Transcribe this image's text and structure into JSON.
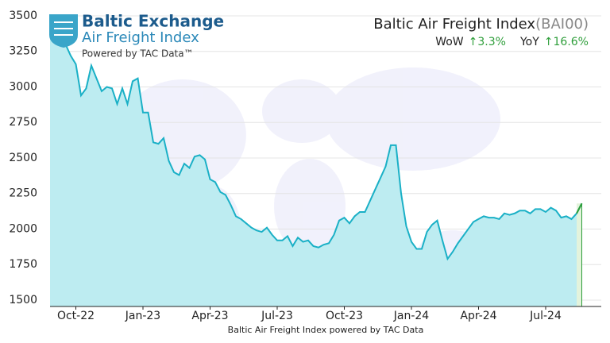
{
  "chart_data": {
    "type": "line",
    "title": "Baltic Air Freight Index",
    "code": "(BAI00)",
    "logo": {
      "name": "Baltic Exchange",
      "product": "Air Freight Index",
      "powered": "Powered by TAC Data™"
    },
    "stats": [
      {
        "label": "WoW",
        "value": "↑3.3%"
      },
      {
        "label": "YoY",
        "value": "↑16.6%"
      }
    ],
    "xlabel": "Baltic Air Freight Index powered by TAC Data",
    "categories": [
      null,
      null,
      null,
      null,
      null,
      "Oct-22",
      null,
      null,
      null,
      null,
      null,
      null,
      null,
      null,
      null,
      null,
      null,
      null,
      "Jan-23",
      null,
      null,
      null,
      null,
      null,
      null,
      null,
      null,
      null,
      null,
      null,
      null,
      "Apr-23",
      null,
      null,
      null,
      null,
      null,
      null,
      null,
      null,
      null,
      null,
      null,
      null,
      "Jul-23",
      null,
      null,
      null,
      null,
      null,
      null,
      null,
      null,
      null,
      null,
      null,
      null,
      "Oct-23",
      null,
      null,
      null,
      null,
      null,
      null,
      null,
      null,
      null,
      null,
      null,
      null,
      "Jan-24",
      null,
      null,
      null,
      null,
      null,
      null,
      null,
      null,
      null,
      null,
      null,
      null,
      "Apr-24",
      null,
      null,
      null,
      null,
      null,
      null,
      null,
      null,
      null,
      null,
      null,
      null,
      "Jul-24",
      null,
      null,
      null,
      null,
      null,
      null,
      null
    ],
    "series": [
      {
        "name": "BAI00",
        "color": "#1ab0c6",
        "fill": "#bdecf1",
        "values": [
          3480,
          3440,
          3380,
          3300,
          3220,
          3160,
          2940,
          2990,
          3150,
          3060,
          2970,
          3000,
          2990,
          2880,
          2990,
          2880,
          3040,
          3060,
          2820,
          2820,
          2610,
          2600,
          2640,
          2480,
          2400,
          2380,
          2460,
          2430,
          2510,
          2520,
          2490,
          2350,
          2330,
          2260,
          2240,
          2170,
          2090,
          2070,
          2040,
          2010,
          1990,
          1980,
          2010,
          1960,
          1920,
          1920,
          1950,
          1880,
          1940,
          1910,
          1920,
          1880,
          1870,
          1890,
          1900,
          1960,
          2060,
          2080,
          2040,
          2090,
          2120,
          2120,
          2200,
          2280,
          2360,
          2440,
          2590,
          2590,
          2250,
          2020,
          1910,
          1860,
          1860,
          1980,
          2030,
          2060,
          1920,
          1790,
          1840,
          1900,
          1950,
          2000,
          2050,
          2070,
          2090,
          2080,
          2080,
          2070,
          2110,
          2100,
          2110,
          2130,
          2130,
          2110,
          2140,
          2140,
          2120,
          2150,
          2130,
          2080,
          2090,
          2070,
          2110,
          2180
        ]
      }
    ],
    "latest_color": "#2e9e3a",
    "ylim": [
      1455,
      3500
    ],
    "yticks": [
      1500,
      1750,
      2000,
      2250,
      2500,
      2750,
      3000,
      3250,
      3500
    ],
    "grid": true
  }
}
